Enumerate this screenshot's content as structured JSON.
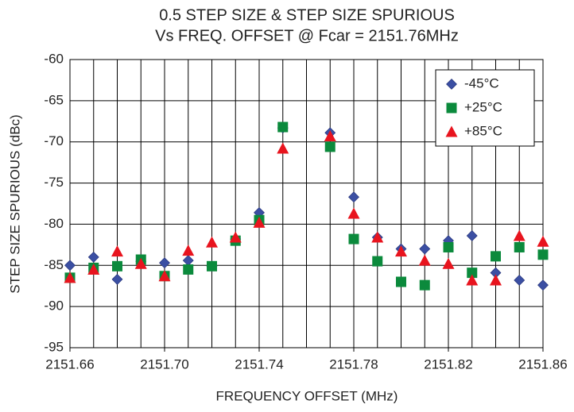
{
  "chart_data": {
    "type": "scatter",
    "title": [
      "0.5 STEP SIZE & STEP SIZE SPURIOUS",
      "Vs FREQ. OFFSET @ Fcar = 2151.76MHz"
    ],
    "x_label": "FREQUENCY OFFSET (MHz)",
    "y_label": "STEP SIZE SPURIOUS (dBc)",
    "x": [
      2151.66,
      2151.67,
      2151.68,
      2151.69,
      2151.7,
      2151.71,
      2151.72,
      2151.73,
      2151.74,
      2151.75,
      2151.77,
      2151.78,
      2151.79,
      2151.8,
      2151.81,
      2151.82,
      2151.83,
      2151.84,
      2151.85,
      2151.86
    ],
    "series": [
      {
        "name": "-45°C",
        "color": "#3b4fa3",
        "marker": "diamond",
        "values": [
          -85.0,
          -84.0,
          -86.7,
          -84.5,
          -84.7,
          -84.4,
          -85.1,
          -81.8,
          -78.6,
          -68.3,
          -68.9,
          -76.7,
          -81.6,
          -83.0,
          -83.0,
          -82.0,
          -81.4,
          -85.9,
          -86.8,
          -87.4
        ]
      },
      {
        "name": "+25°C",
        "color": "#0b8a3c",
        "marker": "square",
        "values": [
          -86.5,
          -85.3,
          -85.1,
          -84.3,
          -86.3,
          -85.5,
          -85.1,
          -82.0,
          -79.5,
          -68.2,
          -70.6,
          -81.8,
          -84.5,
          -87.0,
          -87.4,
          -82.8,
          -85.9,
          -83.9,
          -82.8,
          -83.7
        ]
      },
      {
        "name": "+85°C",
        "color": "#e8141e",
        "marker": "triangle",
        "values": [
          -86.5,
          -85.5,
          -83.3,
          -84.8,
          -86.3,
          -83.2,
          -82.2,
          -81.6,
          -79.8,
          -70.8,
          -69.3,
          -78.7,
          -81.6,
          -83.3,
          -84.4,
          -84.8,
          -86.8,
          -86.8,
          -81.4,
          -82.1
        ]
      }
    ],
    "xlim": [
      2151.66,
      2151.86
    ],
    "xticks": [
      2151.66,
      {
        "value": 2151.7,
        "label": "2151.70"
      },
      2151.74,
      2151.78,
      2151.82,
      2151.86
    ],
    "x_minor_ticks": [
      2151.67,
      2151.68,
      2151.69,
      2151.71,
      2151.72,
      2151.73,
      2151.75,
      2151.76,
      2151.77,
      2151.79,
      2151.8,
      2151.81,
      2151.83,
      2151.84,
      2151.85
    ],
    "ylim": [
      -95,
      -60
    ],
    "yticks": [
      -60,
      -65,
      -70,
      -75,
      -80,
      -85,
      -90,
      -95
    ],
    "grid": true,
    "legend": "upper right"
  }
}
